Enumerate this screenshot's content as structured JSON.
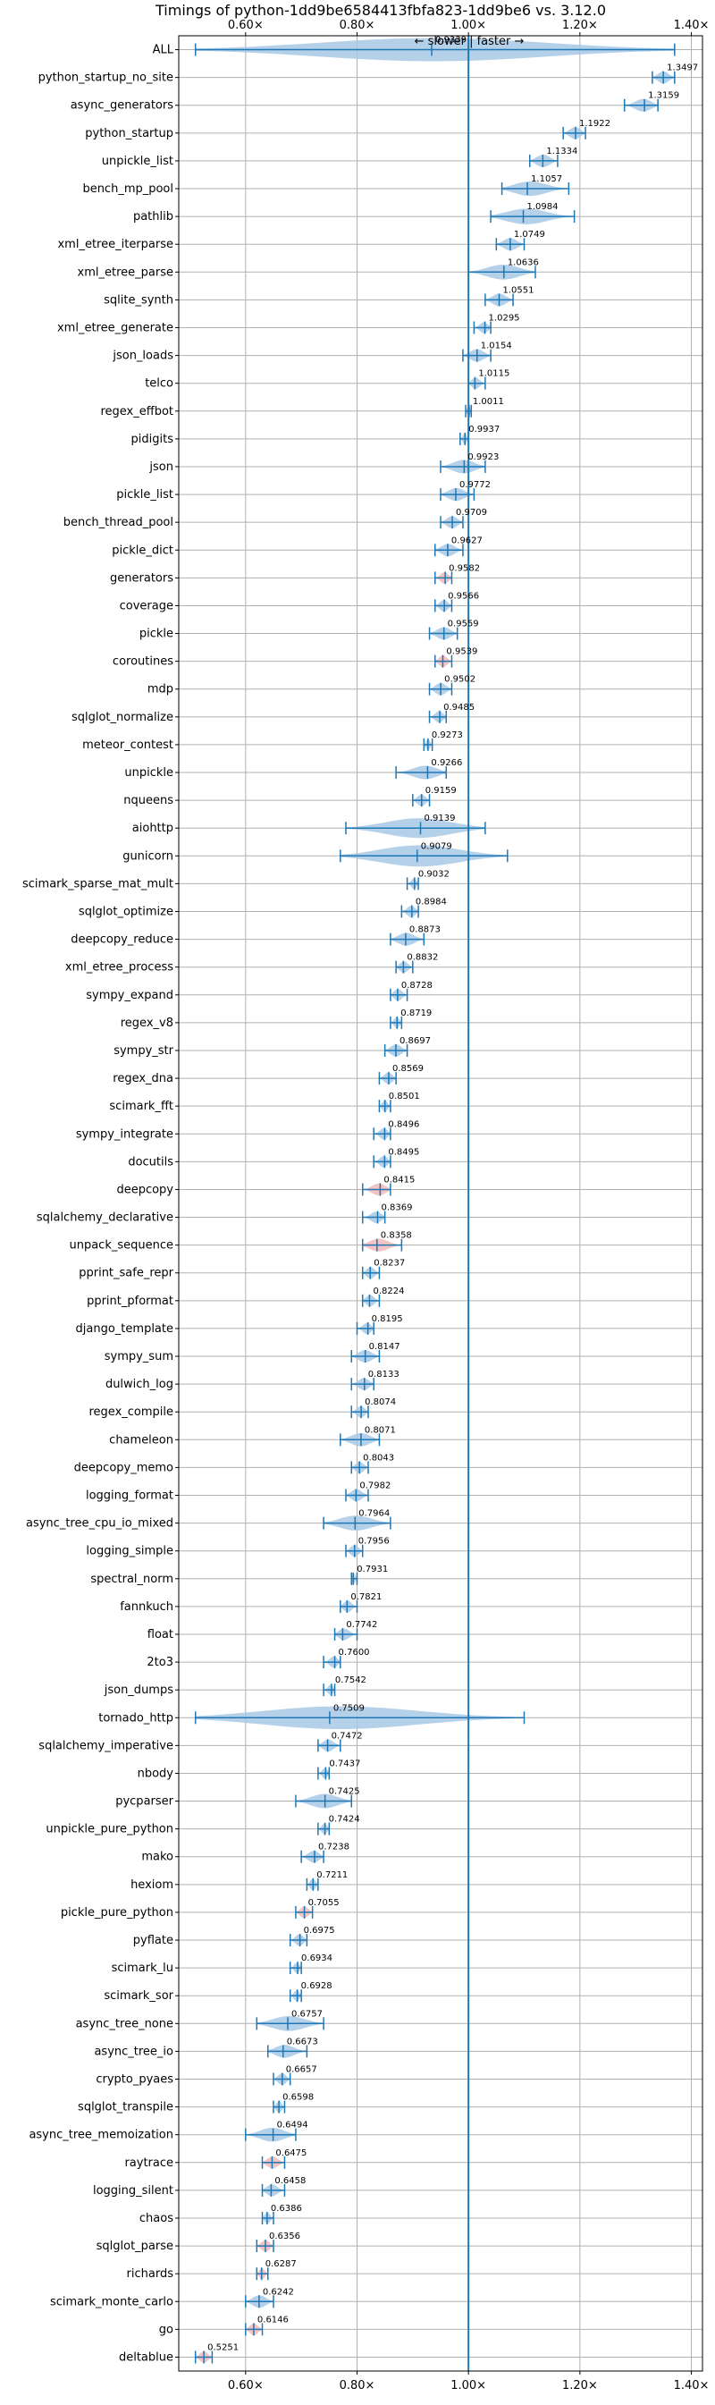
{
  "chart_data": {
    "type": "violin",
    "title": "Timings of python-1dd9be6584413fbfa823-1dd9be6 vs. 3.12.0",
    "direction_label": "← slower | faster →",
    "x_ticks": [
      "0.60×",
      "0.80×",
      "1.00×",
      "1.20×",
      "1.40×"
    ],
    "x_tick_values": [
      0.6,
      0.8,
      1.0,
      1.2,
      1.4
    ],
    "xlim": [
      0.48,
      1.42
    ],
    "reference_line": 1.0,
    "grid": true,
    "categories": [
      "ALL",
      "python_startup_no_site",
      "async_generators",
      "python_startup",
      "unpickle_list",
      "bench_mp_pool",
      "pathlib",
      "xml_etree_iterparse",
      "xml_etree_parse",
      "sqlite_synth",
      "xml_etree_generate",
      "json_loads",
      "telco",
      "regex_effbot",
      "pidigits",
      "json",
      "pickle_list",
      "bench_thread_pool",
      "pickle_dict",
      "generators",
      "coverage",
      "pickle",
      "coroutines",
      "mdp",
      "sqlglot_normalize",
      "meteor_contest",
      "unpickle",
      "nqueens",
      "aiohttp",
      "gunicorn",
      "scimark_sparse_mat_mult",
      "sqlglot_optimize",
      "deepcopy_reduce",
      "xml_etree_process",
      "sympy_expand",
      "regex_v8",
      "sympy_str",
      "regex_dna",
      "scimark_fft",
      "sympy_integrate",
      "docutils",
      "deepcopy",
      "sqlalchemy_declarative",
      "unpack_sequence",
      "pprint_safe_repr",
      "pprint_pformat",
      "django_template",
      "sympy_sum",
      "dulwich_log",
      "regex_compile",
      "chameleon",
      "deepcopy_memo",
      "logging_format",
      "async_tree_cpu_io_mixed",
      "logging_simple",
      "spectral_norm",
      "fannkuch",
      "float",
      "2to3",
      "json_dumps",
      "tornado_http",
      "sqlalchemy_imperative",
      "nbody",
      "pycparser",
      "unpickle_pure_python",
      "mako",
      "hexiom",
      "pickle_pure_python",
      "pyflate",
      "scimark_lu",
      "scimark_sor",
      "async_tree_none",
      "async_tree_io",
      "crypto_pyaes",
      "sqlglot_transpile",
      "async_tree_memoization",
      "raytrace",
      "logging_silent",
      "chaos",
      "sqlglot_parse",
      "richards",
      "scimark_monte_carlo",
      "go",
      "deltablue"
    ],
    "value_labels": [
      "0.9339",
      "1.3497",
      "1.3159",
      "1.1922",
      "1.1334",
      "1.1057",
      "1.0984",
      "1.0749",
      "1.0636",
      "1.0551",
      "1.0295",
      "1.0154",
      "1.0115",
      "1.0011",
      "0.9937",
      "0.9923",
      "0.9772",
      "0.9709",
      "0.9627",
      "0.9582",
      "0.9566",
      "0.9559",
      "0.9539",
      "0.9502",
      "0.9485",
      "0.9273",
      "0.9266",
      "0.9159",
      "0.9139",
      "0.9079",
      "0.9032",
      "0.8984",
      "0.8873",
      "0.8832",
      "0.8728",
      "0.8719",
      "0.8697",
      "0.8569",
      "0.8501",
      "0.8496",
      "0.8495",
      "0.8415",
      "0.8369",
      "0.8358",
      "0.8237",
      "0.8224",
      "0.8195",
      "0.8147",
      "0.8133",
      "0.8074",
      "0.8071",
      "0.8043",
      "0.7982",
      "0.7964",
      "0.7956",
      "0.7931",
      "0.7821",
      "0.7742",
      "0.7600",
      "0.7542",
      "0.7509",
      "0.7472",
      "0.7437",
      "0.7425",
      "0.7424",
      "0.7238",
      "0.7211",
      "0.7055",
      "0.6975",
      "0.6934",
      "0.6928",
      "0.6757",
      "0.6673",
      "0.6657",
      "0.6598",
      "0.6494",
      "0.6475",
      "0.6458",
      "0.6386",
      "0.6356",
      "0.6287",
      "0.6242",
      "0.6146",
      "0.5251"
    ],
    "ranges": [
      [
        0.51,
        1.37
      ],
      [
        1.33,
        1.37
      ],
      [
        1.28,
        1.34
      ],
      [
        1.17,
        1.21
      ],
      [
        1.11,
        1.16
      ],
      [
        1.06,
        1.18
      ],
      [
        1.04,
        1.19
      ],
      [
        1.05,
        1.1
      ],
      [
        1.0,
        1.12
      ],
      [
        1.03,
        1.08
      ],
      [
        1.01,
        1.04
      ],
      [
        0.99,
        1.04
      ],
      [
        1.0,
        1.03
      ],
      [
        0.995,
        1.005
      ],
      [
        0.985,
        1.0
      ],
      [
        0.95,
        1.03
      ],
      [
        0.95,
        1.01
      ],
      [
        0.95,
        0.99
      ],
      [
        0.94,
        0.99
      ],
      [
        0.94,
        0.97
      ],
      [
        0.94,
        0.97
      ],
      [
        0.93,
        0.98
      ],
      [
        0.94,
        0.97
      ],
      [
        0.93,
        0.97
      ],
      [
        0.93,
        0.96
      ],
      [
        0.92,
        0.935
      ],
      [
        0.87,
        0.96
      ],
      [
        0.9,
        0.93
      ],
      [
        0.78,
        1.03
      ],
      [
        0.77,
        1.07
      ],
      [
        0.89,
        0.91
      ],
      [
        0.88,
        0.91
      ],
      [
        0.86,
        0.92
      ],
      [
        0.87,
        0.9
      ],
      [
        0.86,
        0.89
      ],
      [
        0.86,
        0.88
      ],
      [
        0.85,
        0.89
      ],
      [
        0.84,
        0.87
      ],
      [
        0.84,
        0.86
      ],
      [
        0.83,
        0.86
      ],
      [
        0.83,
        0.86
      ],
      [
        0.81,
        0.86
      ],
      [
        0.81,
        0.85
      ],
      [
        0.81,
        0.88
      ],
      [
        0.81,
        0.84
      ],
      [
        0.81,
        0.84
      ],
      [
        0.8,
        0.83
      ],
      [
        0.79,
        0.84
      ],
      [
        0.79,
        0.83
      ],
      [
        0.79,
        0.82
      ],
      [
        0.77,
        0.84
      ],
      [
        0.79,
        0.82
      ],
      [
        0.78,
        0.82
      ],
      [
        0.74,
        0.86
      ],
      [
        0.78,
        0.81
      ],
      [
        0.79,
        0.8
      ],
      [
        0.77,
        0.8
      ],
      [
        0.76,
        0.8
      ],
      [
        0.74,
        0.77
      ],
      [
        0.74,
        0.76
      ],
      [
        0.51,
        1.1
      ],
      [
        0.73,
        0.77
      ],
      [
        0.73,
        0.75
      ],
      [
        0.69,
        0.79
      ],
      [
        0.73,
        0.75
      ],
      [
        0.7,
        0.74
      ],
      [
        0.71,
        0.73
      ],
      [
        0.69,
        0.72
      ],
      [
        0.68,
        0.71
      ],
      [
        0.68,
        0.7
      ],
      [
        0.68,
        0.7
      ],
      [
        0.62,
        0.74
      ],
      [
        0.64,
        0.71
      ],
      [
        0.65,
        0.68
      ],
      [
        0.65,
        0.67
      ],
      [
        0.6,
        0.69
      ],
      [
        0.63,
        0.67
      ],
      [
        0.63,
        0.67
      ],
      [
        0.63,
        0.65
      ],
      [
        0.62,
        0.65
      ],
      [
        0.62,
        0.64
      ],
      [
        0.6,
        0.65
      ],
      [
        0.6,
        0.63
      ],
      [
        0.51,
        0.54
      ]
    ],
    "highlight_red": [
      "deltablue",
      "go",
      "richards",
      "sqlglot_parse",
      "raytrace",
      "pickle_pure_python",
      "deepcopy",
      "unpack_sequence",
      "coroutines",
      "generators"
    ]
  }
}
